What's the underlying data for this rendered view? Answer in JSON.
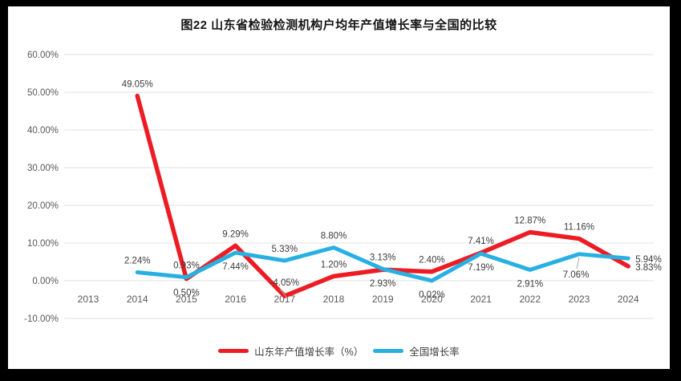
{
  "frame": {
    "outer_background": "#000000",
    "chart_background": "#ffffff"
  },
  "chart_data": {
    "type": "line",
    "title": "图22 山东省检验检测机构户均年产值增长率与全国的比较",
    "categories": [
      "2013",
      "2014",
      "2015",
      "2016",
      "2017",
      "2018",
      "2019",
      "2020",
      "2021",
      "2022",
      "2023",
      "2024"
    ],
    "y_ticks": [
      60,
      50,
      40,
      30,
      20,
      10,
      0,
      -10
    ],
    "y_tick_labels": [
      "60.00%",
      "50.00%",
      "40.00%",
      "30.00%",
      "20.00%",
      "10.00%",
      "0.00%",
      "-10.00%"
    ],
    "ylim": [
      -10,
      60
    ],
    "grid": true,
    "legend_position": "bottom",
    "axis_text_color": "#595959",
    "gridline_color": "#e0e0e0",
    "data_label_color": "#3b3b3b",
    "series": [
      {
        "name": "山东年产值增长率（%）",
        "color": "#ed1c24",
        "stroke_width": 5.5,
        "values": [
          null,
          49.05,
          0.5,
          9.29,
          -4.05,
          1.2,
          2.93,
          2.4,
          7.41,
          12.87,
          11.16,
          3.83
        ],
        "data_labels": [
          "",
          "49.05%",
          "0.50%",
          "9.29%",
          "-4.05%",
          "1.20%",
          "2.93%",
          "2.40%",
          "7.41%",
          "12.87%",
          "11.16%",
          "3.83%"
        ],
        "label_positions": [
          "",
          "above",
          "below",
          "above",
          "above-leader",
          "above",
          "below",
          "above",
          "above",
          "above",
          "above",
          "right"
        ]
      },
      {
        "name": "全国增长率",
        "color": "#29b0e3",
        "stroke_width": 5,
        "values": [
          null,
          2.24,
          0.93,
          7.44,
          5.33,
          8.8,
          3.13,
          0.02,
          7.19,
          2.91,
          7.06,
          5.94
        ],
        "data_labels": [
          "",
          "2.24%",
          "0.93%",
          "7.44%",
          "5.33%",
          "8.80%",
          "3.13%",
          "0.02%",
          "7.19%",
          "2.91%",
          "7.06%",
          "5.94%"
        ],
        "label_positions": [
          "",
          "above",
          "above",
          "below",
          "above",
          "above",
          "above",
          "below",
          "below",
          "below",
          "below-leader",
          "right"
        ]
      }
    ]
  }
}
